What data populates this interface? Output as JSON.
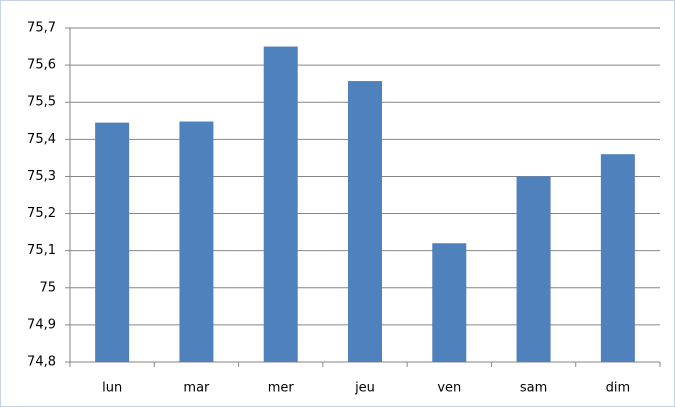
{
  "chart_data": {
    "type": "bar",
    "categories": [
      "lun",
      "mar",
      "mer",
      "jeu",
      "ven",
      "sam",
      "dim"
    ],
    "values": [
      75.445,
      75.448,
      75.65,
      75.557,
      75.12,
      75.3,
      75.36
    ],
    "color": "#4f81bd",
    "ylim": [
      74.8,
      75.7
    ],
    "yticks": [
      {
        "value": 74.8,
        "label": "74,8"
      },
      {
        "value": 74.9,
        "label": "74,9"
      },
      75,
      {
        "value": 75.1,
        "label": "75,1"
      },
      {
        "value": 75.2,
        "label": "75,2"
      },
      {
        "value": 75.3,
        "label": "75,3"
      },
      {
        "value": 75.4,
        "label": "75,4"
      },
      {
        "value": 75.5,
        "label": "75,5"
      },
      {
        "value": 75.6,
        "label": "75,6"
      },
      {
        "value": 75.7,
        "label": "75,7"
      }
    ],
    "grid": true
  }
}
